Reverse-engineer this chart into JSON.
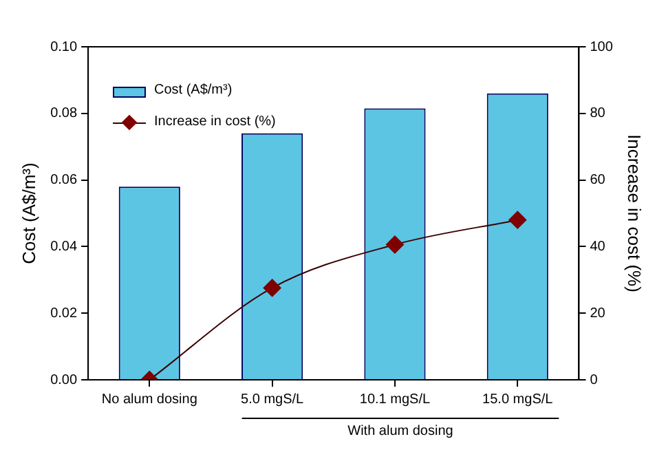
{
  "chart_data": {
    "type": "bar",
    "categories": [
      "No alum dosing",
      "5.0 mgS/L",
      "10.1 mgS/L",
      "15.0 mgS/L"
    ],
    "series": [
      {
        "name": "Cost (A$/m³)",
        "color": "#5bc5e3",
        "values": [
          0.058,
          0.074,
          0.0815,
          0.086
        ]
      },
      {
        "name": "Increase in cost (%)",
        "type": "line",
        "axis": "y2",
        "color": "#7f0000",
        "values": [
          0,
          27.6,
          40.6,
          48
        ]
      }
    ],
    "ylabel": "Cost (A$/m³)",
    "y2label": "Increase in cost (%)",
    "ylim": [
      0,
      0.1
    ],
    "yticks": [
      {
        "value": 0,
        "label": "0.00"
      },
      {
        "value": 0.02,
        "label": "0.02"
      },
      {
        "value": 0.04,
        "label": "0.04"
      },
      {
        "value": 0.06,
        "label": "0.06"
      },
      {
        "value": 0.08,
        "label": "0.08"
      },
      {
        "value": 0.1,
        "label": "0.10"
      }
    ],
    "y2lim": [
      0,
      100
    ],
    "y2ticks": [
      0,
      20,
      40,
      60,
      80,
      100
    ],
    "annotations": [
      "With alum dosing"
    ],
    "grid": false,
    "legend": "top left",
    "marker": "diamond",
    "line_style": "solid"
  }
}
